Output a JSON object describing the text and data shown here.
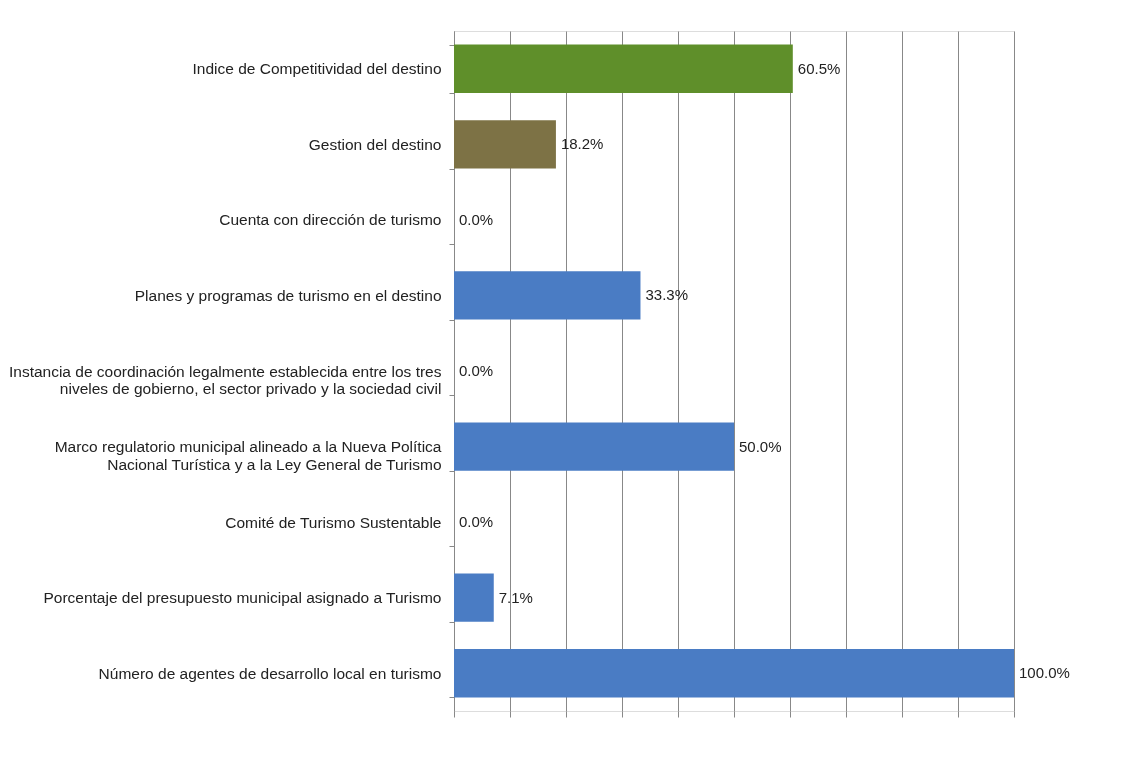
{
  "chart_data": {
    "type": "bar",
    "orientation": "horizontal",
    "categories": [
      "Indice de Competitividad del destino",
      "Gestion del destino",
      "Cuenta con dirección de turismo",
      "Planes y programas de turismo en el destino",
      "Instancia de coordinación legalmente establecida entre los tres\nniveles de gobierno, el sector privado y la sociedad civil",
      "Marco regulatorio municipal alineado a la Nueva Política\nNacional Turística y a la Ley General de Turismo",
      "Comité de Turismo Sustentable",
      "Porcentaje del presupuesto municipal asignado a Turismo",
      "Número de agentes de desarrollo local en turismo"
    ],
    "values": [
      60.5,
      18.2,
      0.0,
      33.3,
      0.0,
      50.0,
      0.0,
      7.1,
      100.0
    ],
    "value_labels": [
      "60.5%",
      "18.2%",
      "0.0%",
      "33.3%",
      "0.0%",
      "50.0%",
      "0.0%",
      "7.1%",
      "100.0%"
    ],
    "colors": [
      "#5f8f2a",
      "#7d7245",
      "#4a7cc4",
      "#4a7cc4",
      "#4a7cc4",
      "#4a7cc4",
      "#4a7cc4",
      "#4a7cc4",
      "#4a7cc4"
    ],
    "xlim": [
      0,
      100
    ],
    "xticks": [
      {
        "value": 0,
        "label": null
      },
      {
        "value": 10,
        "label": null
      },
      {
        "value": 20,
        "label": null
      },
      {
        "value": 30,
        "label": null
      },
      {
        "value": 40,
        "label": null
      },
      {
        "value": 50,
        "label": null
      },
      {
        "value": 60,
        "label": null
      },
      {
        "value": 70,
        "label": null
      },
      {
        "value": 80,
        "label": null
      },
      {
        "value": 90,
        "label": null
      },
      {
        "value": 100,
        "label": null
      }
    ],
    "grid": "x",
    "tick_labels": "y"
  }
}
